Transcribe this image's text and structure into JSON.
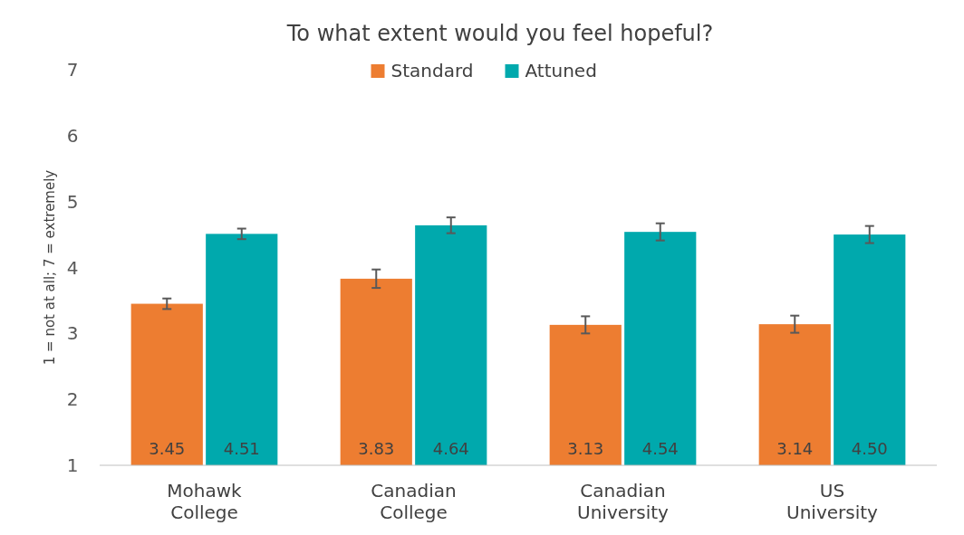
{
  "chart_data": {
    "type": "bar",
    "title": "To what extent would you feel hopeful?",
    "ylabel": "1 = not at all; 7 = extremely",
    "categories": [
      "Mohawk College",
      "Canadian College",
      "Canadian University",
      "US University"
    ],
    "series": [
      {
        "name": "Standard",
        "color": "#ed7d31",
        "values": [
          3.45,
          3.83,
          3.13,
          3.14
        ],
        "errors": [
          0.08,
          0.14,
          0.13,
          0.13
        ],
        "value_labels": [
          "3.45",
          "3.83",
          "3.13",
          "3.14"
        ]
      },
      {
        "name": "Attuned",
        "color": "#00a9ad",
        "values": [
          4.51,
          4.64,
          4.54,
          4.5
        ],
        "errors": [
          0.08,
          0.12,
          0.13,
          0.13
        ],
        "value_labels": [
          "4.51",
          "4.64",
          "4.54",
          "4.50"
        ]
      }
    ],
    "ylim": [
      1,
      7
    ],
    "yticks": [
      1,
      2,
      3,
      4,
      5,
      6,
      7
    ],
    "legend": "top",
    "grid": false
  }
}
